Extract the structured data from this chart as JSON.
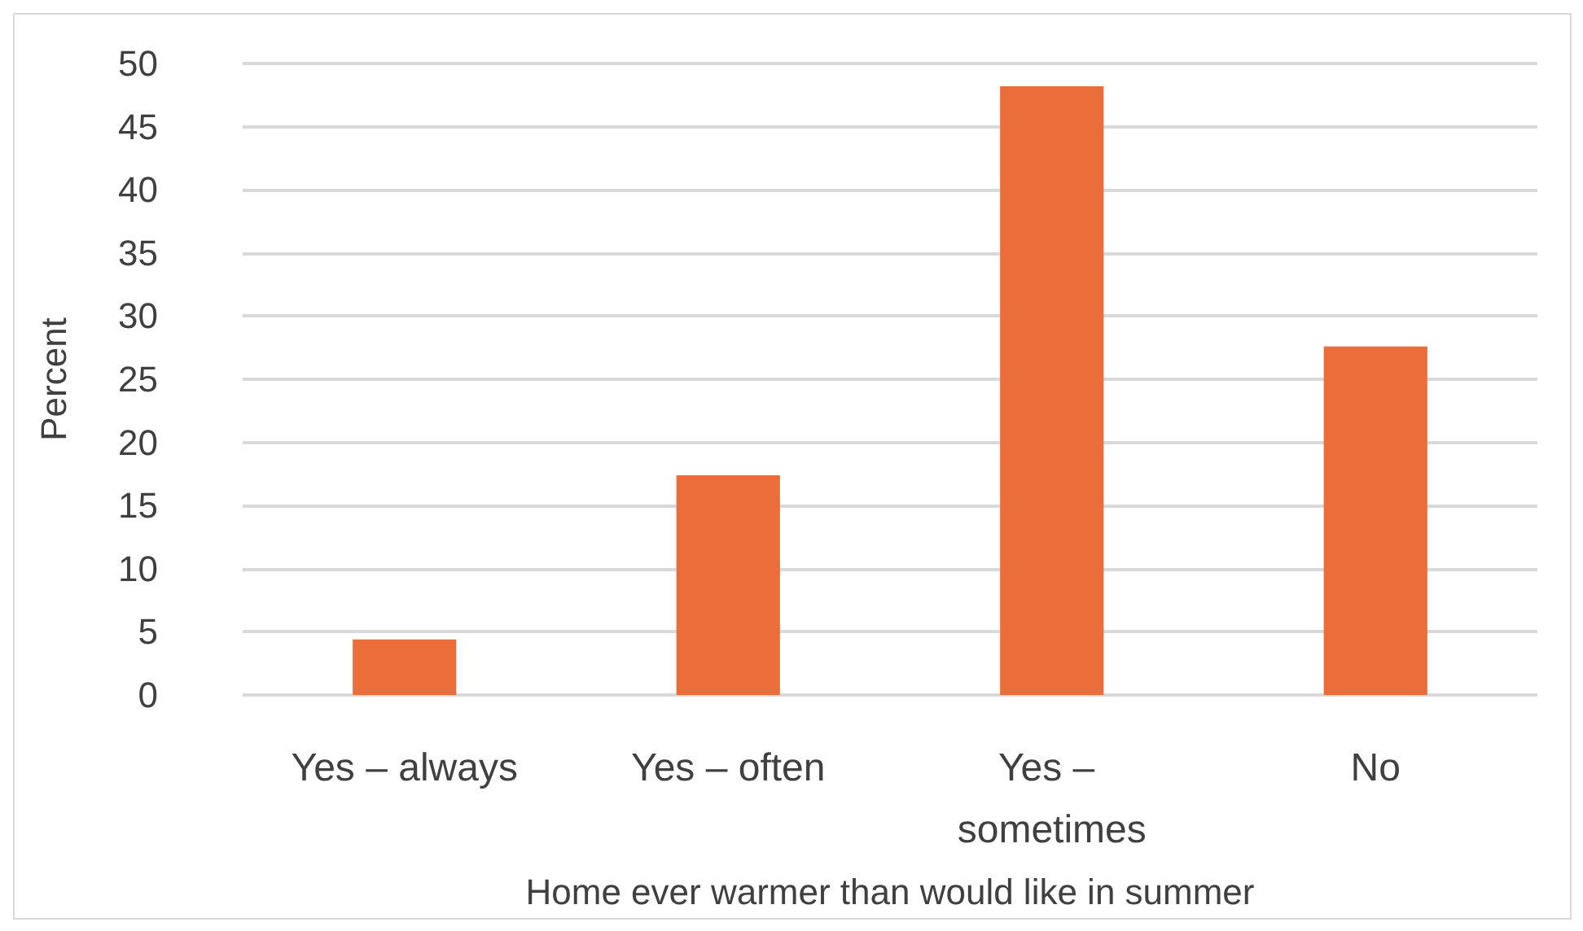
{
  "chart_data": {
    "type": "bar",
    "xlabel": "Home ever warmer than would like in summer",
    "ylabel": "Percent",
    "categories": [
      "Yes – always",
      "Yes – often",
      "Yes – sometimes",
      "No"
    ],
    "values": [
      4.4,
      17.4,
      48.2,
      27.6
    ],
    "color": "#eb6e3a",
    "ylim": [
      0,
      50
    ],
    "yticks": [
      0,
      5,
      10,
      15,
      20,
      25,
      30,
      35,
      40,
      45,
      50
    ],
    "grid": "y"
  }
}
